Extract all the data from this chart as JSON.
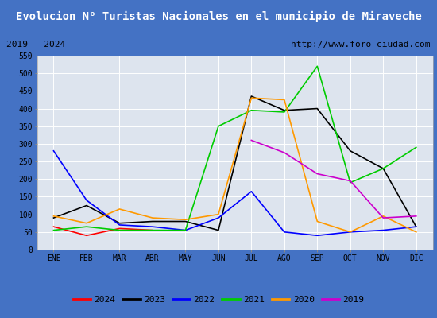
{
  "title": "Evolucion Nº Turistas Nacionales en el municipio de Miraveche",
  "subtitle_left": "2019 - 2024",
  "subtitle_right": "http://www.foro-ciudad.com",
  "months": [
    "ENE",
    "FEB",
    "MAR",
    "ABR",
    "MAY",
    "JUN",
    "JUL",
    "AGO",
    "SEP",
    "OCT",
    "NOV",
    "DIC"
  ],
  "series": {
    "2024": {
      "color": "#ff0000",
      "data": [
        65,
        40,
        60,
        55,
        null,
        null,
        null,
        null,
        null,
        null,
        null,
        null
      ]
    },
    "2023": {
      "color": "#000000",
      "data": [
        90,
        125,
        75,
        80,
        80,
        55,
        435,
        395,
        400,
        280,
        230,
        65
      ]
    },
    "2022": {
      "color": "#0000ff",
      "data": [
        280,
        140,
        70,
        65,
        55,
        90,
        165,
        50,
        40,
        50,
        55,
        65
      ]
    },
    "2021": {
      "color": "#00cc00",
      "data": [
        55,
        65,
        55,
        55,
        55,
        350,
        395,
        390,
        520,
        190,
        230,
        290
      ]
    },
    "2020": {
      "color": "#ff9900",
      "data": [
        95,
        75,
        115,
        90,
        85,
        100,
        430,
        425,
        80,
        50,
        95,
        50
      ]
    },
    "2019": {
      "color": "#cc00cc",
      "data": [
        null,
        null,
        null,
        null,
        null,
        null,
        310,
        275,
        215,
        195,
        90,
        95
      ]
    }
  },
  "ylim": [
    0,
    550
  ],
  "yticks": [
    0,
    50,
    100,
    150,
    200,
    250,
    300,
    350,
    400,
    450,
    500,
    550
  ],
  "title_bg": "#4472c4",
  "title_color": "#ffffff",
  "plot_bg": "#dde4ee",
  "border_color": "#4472c4",
  "grid_color": "#ffffff",
  "subtitle_bg": "#ffffff",
  "legend_order": [
    "2024",
    "2023",
    "2022",
    "2021",
    "2020",
    "2019"
  ],
  "fig_bg": "#4472c4"
}
